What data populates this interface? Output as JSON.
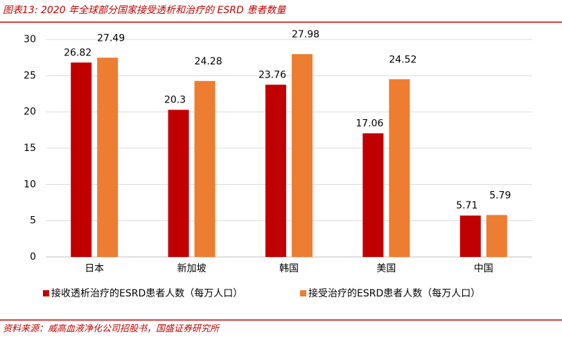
{
  "chart_data": {
    "type": "bar",
    "title": "图表13: 2020 年全球部分国家接受透析和治疗的 ESRD 患者数量",
    "source": "资料来源：威高血液净化公司招股书，国盛证券研究所",
    "categories": [
      "日本",
      "新加坡",
      "韩国",
      "美国",
      "中国"
    ],
    "series": [
      {
        "name": "接收透析治疗的ESRD患者人数（每万人口）",
        "color": "#c00000",
        "values": [
          26.82,
          20.3,
          23.76,
          17.06,
          5.71
        ]
      },
      {
        "name": "接受治疗的ESRD患者人数（每万人口）",
        "color": "#ed7d31",
        "values": [
          27.49,
          24.28,
          27.98,
          24.52,
          5.79
        ]
      }
    ],
    "ylim": [
      0,
      30
    ],
    "yticks": [
      0,
      5,
      10,
      15,
      20,
      25,
      30
    ],
    "grid": true
  }
}
